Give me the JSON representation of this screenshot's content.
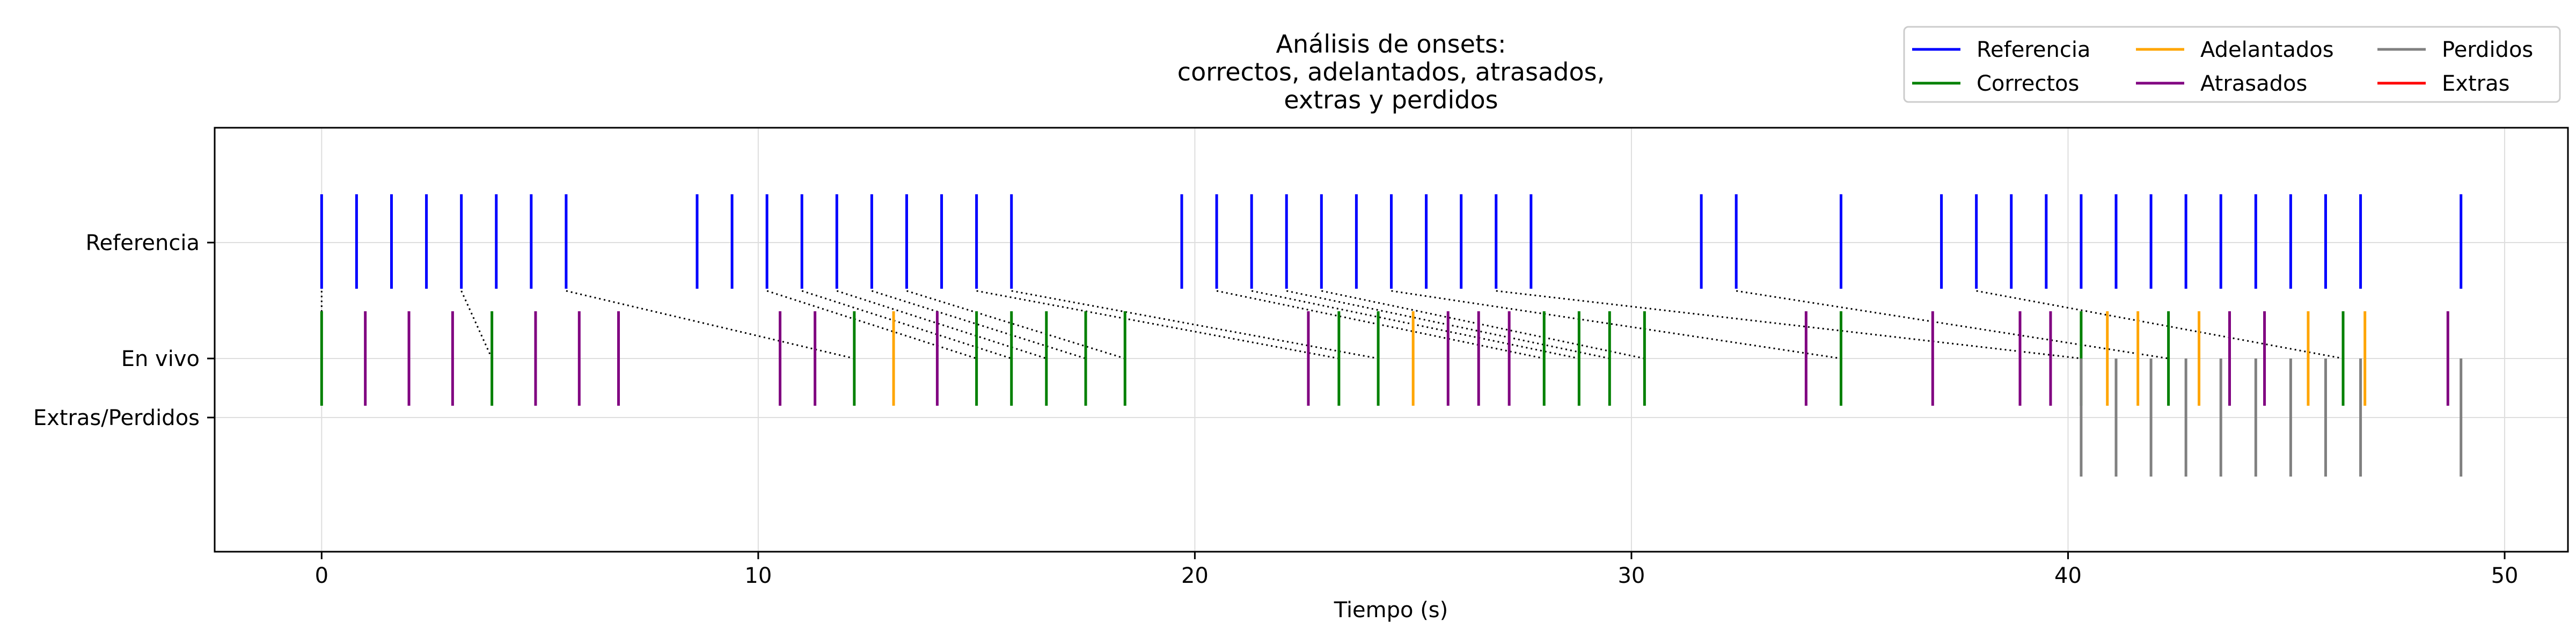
{
  "chart_data": {
    "type": "event",
    "title_lines": [
      "Análisis de onsets:",
      "correctos, adelantados, atrasados,",
      "extras y perdidos"
    ],
    "xlabel": "Tiempo (s)",
    "ylabel": "",
    "xlim": [
      -2.45,
      51.45
    ],
    "xticks": [
      0,
      10,
      20,
      30,
      40,
      50
    ],
    "grid": true,
    "legend_position": "top-right",
    "rows": [
      "Referencia",
      "En vivo",
      "Extras/Perdidos"
    ],
    "colors": {
      "referencia": "#0000ff",
      "correctos": "#008000",
      "adelantados": "#ffa500",
      "atrasados": "#800080",
      "perdidos": "#808080",
      "extras": "#ff0000"
    },
    "legend": [
      {
        "label": "Referencia",
        "color_key": "referencia"
      },
      {
        "label": "Correctos",
        "color_key": "correctos"
      },
      {
        "label": "Adelantados",
        "color_key": "adelantados"
      },
      {
        "label": "Atrasados",
        "color_key": "atrasados"
      },
      {
        "label": "Perdidos",
        "color_key": "perdidos"
      },
      {
        "label": "Extras",
        "color_key": "extras"
      }
    ],
    "series": [
      {
        "name": "Referencia",
        "row": "Referencia",
        "x": [
          0.0,
          0.8,
          1.6,
          2.4,
          3.2,
          4.0,
          4.8,
          5.6,
          8.6,
          9.4,
          10.2,
          11.0,
          11.8,
          12.6,
          13.4,
          14.2,
          15.0,
          15.8,
          19.7,
          20.5,
          21.3,
          22.1,
          22.9,
          23.7,
          24.5,
          25.3,
          26.1,
          26.9,
          27.7,
          31.6,
          32.4,
          34.8,
          37.1,
          37.9,
          38.7,
          39.5,
          40.3,
          41.1,
          41.9,
          42.7,
          43.5,
          44.3,
          45.1,
          45.9,
          46.7,
          49.0
        ]
      },
      {
        "name": "Correctos",
        "row": "En vivo",
        "x": [
          0.0,
          3.9,
          12.2,
          15.0,
          15.8,
          16.6,
          17.5,
          18.4,
          23.3,
          24.2,
          28.0,
          28.8,
          29.5,
          30.3,
          34.8,
          40.3,
          42.3,
          46.3
        ]
      },
      {
        "name": "Adelantados",
        "row": "En vivo",
        "x": [
          13.1,
          25.0,
          40.9,
          41.6,
          43.0,
          45.5,
          46.8
        ]
      },
      {
        "name": "Atrasados",
        "row": "En vivo",
        "x": [
          1.0,
          2.0,
          3.0,
          4.9,
          5.9,
          6.8,
          10.5,
          11.3,
          14.1,
          22.6,
          25.8,
          26.5,
          27.2,
          34.0,
          36.9,
          38.9,
          39.6,
          43.7,
          44.5,
          48.7
        ]
      },
      {
        "name": "Perdidos",
        "row": "Extras/Perdidos",
        "x": [
          40.3,
          41.1,
          41.9,
          42.7,
          43.5,
          44.3,
          45.1,
          45.9,
          46.7,
          49.0
        ]
      },
      {
        "name": "Extras",
        "row": "Extras/Perdidos",
        "x": []
      }
    ],
    "matches": [
      {
        "from": 0.0,
        "to": 0.0
      },
      {
        "from": 3.2,
        "to": 3.9
      },
      {
        "from": 5.6,
        "to": 12.2
      },
      {
        "from": 10.2,
        "to": 15.0
      },
      {
        "from": 11.0,
        "to": 15.8
      },
      {
        "from": 11.8,
        "to": 16.6
      },
      {
        "from": 12.6,
        "to": 17.5
      },
      {
        "from": 13.4,
        "to": 18.4
      },
      {
        "from": 15.0,
        "to": 23.3
      },
      {
        "from": 15.8,
        "to": 24.2
      },
      {
        "from": 20.5,
        "to": 28.0
      },
      {
        "from": 21.3,
        "to": 28.8
      },
      {
        "from": 22.1,
        "to": 29.5
      },
      {
        "from": 22.9,
        "to": 30.3
      },
      {
        "from": 24.5,
        "to": 34.8
      },
      {
        "from": 26.9,
        "to": 40.3
      },
      {
        "from": 32.4,
        "to": 42.3
      },
      {
        "from": 37.9,
        "to": 46.3
      }
    ]
  }
}
